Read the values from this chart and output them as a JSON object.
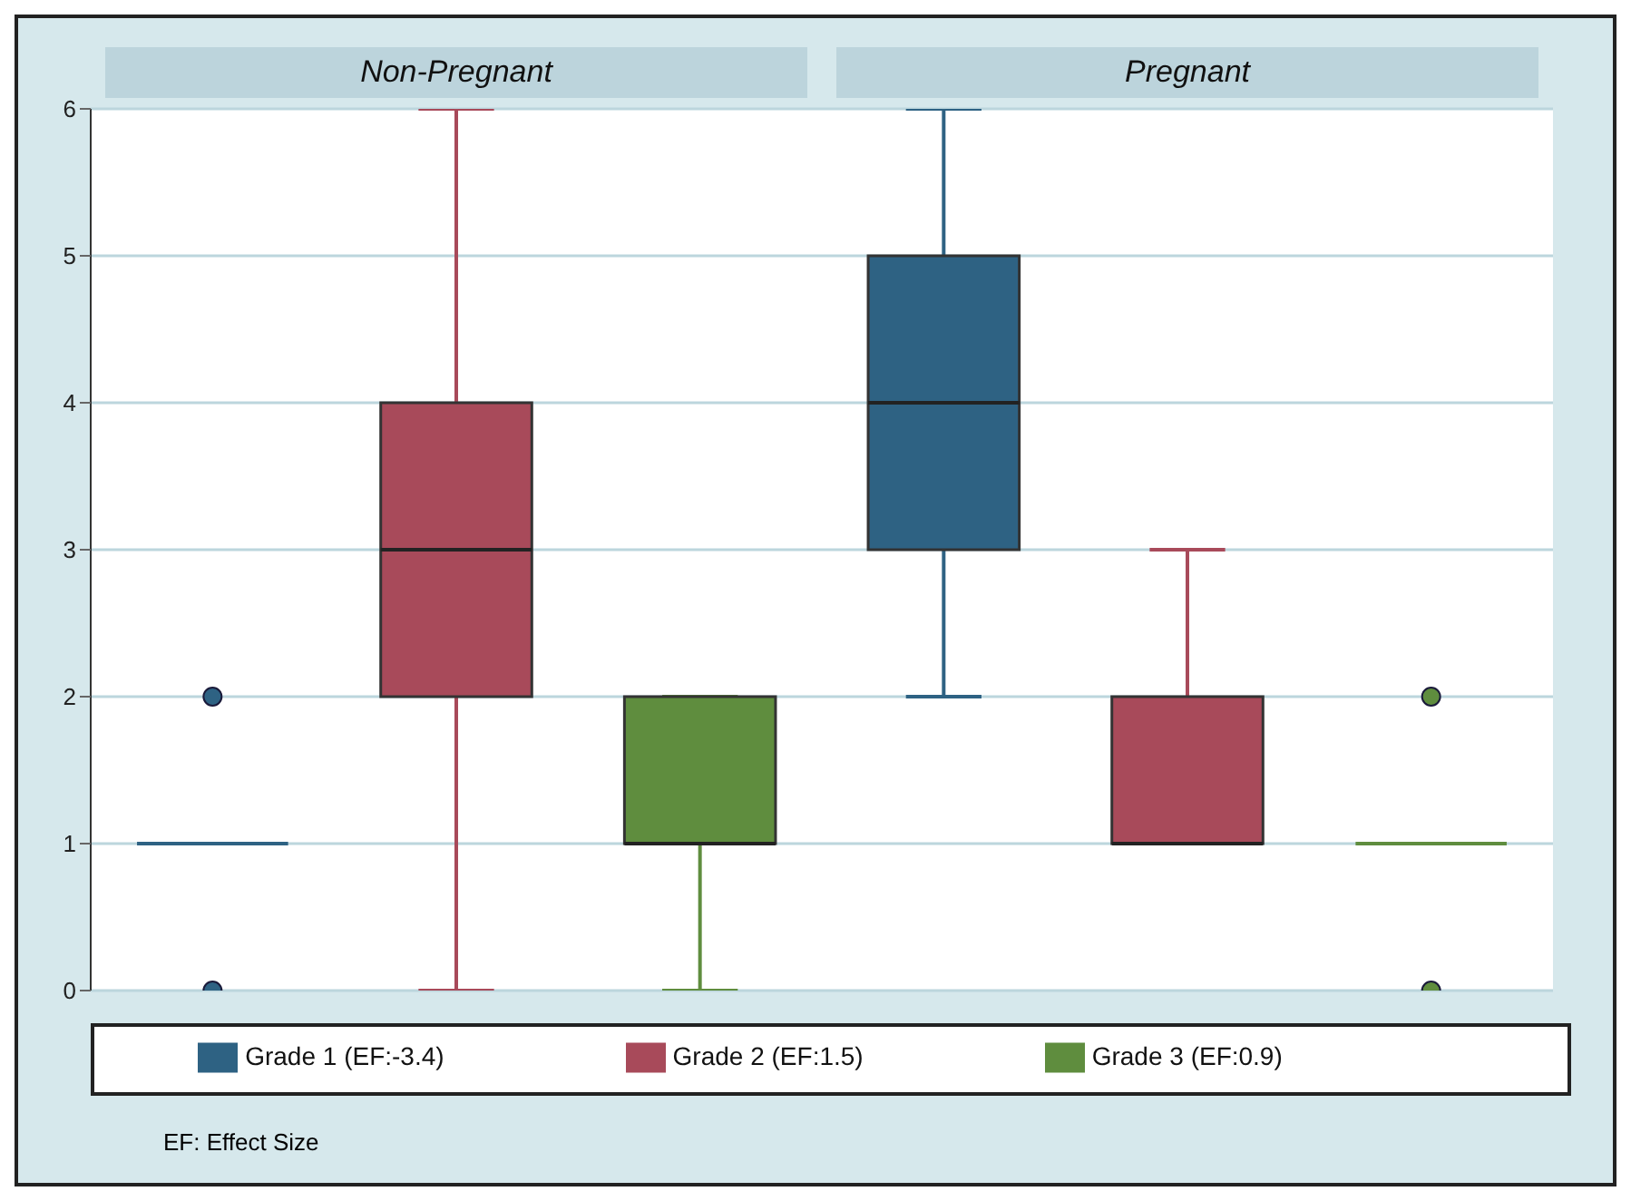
{
  "chart_data": {
    "type": "box",
    "categories": [
      "Non-Pregnant",
      "Pregnant"
    ],
    "ylim": [
      0,
      6
    ],
    "yticks": [
      0,
      1,
      2,
      3,
      4,
      5,
      6
    ],
    "grid": "y",
    "legend": "bottom",
    "annotations": [
      "EF: Effect Size"
    ],
    "series": [
      {
        "name": "Grade 1 (EF:-3.4)",
        "color": "#2e6283",
        "boxes": [
          {
            "low": 1,
            "q1": 1,
            "median": 1,
            "q3": 1,
            "high": 1,
            "outliers": [
              0,
              2
            ]
          },
          {
            "low": 2,
            "q1": 3,
            "median": 4,
            "q3": 5,
            "high": 6
          }
        ]
      },
      {
        "name": "Grade 2 (EF:1.5)",
        "color": "#a84a5a",
        "boxes": [
          {
            "low": 0,
            "q1": 2,
            "median": 3,
            "q3": 4,
            "high": 6
          },
          {
            "low": 1,
            "q1": 1,
            "median": 1,
            "q3": 2,
            "high": 3
          }
        ]
      },
      {
        "name": "Grade 3 (EF:0.9)",
        "color": "#5f8d3e",
        "boxes": [
          {
            "low": 0,
            "q1": 1,
            "median": 1,
            "q3": 2,
            "high": 2
          },
          {
            "low": 1,
            "q1": 1,
            "median": 1,
            "q3": 1,
            "high": 1,
            "outliers": [
              0,
              2
            ]
          }
        ]
      }
    ]
  }
}
